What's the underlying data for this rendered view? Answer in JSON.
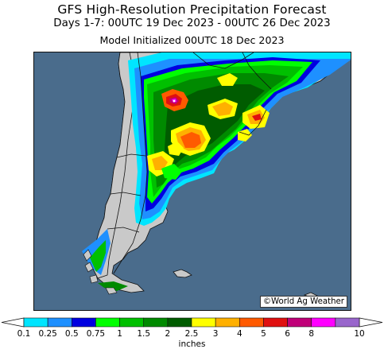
{
  "title": "GFS High-Resolution Precipitation Forecast",
  "subtitle": "Days 1-7: 00UTC 19 Dec 2023 - 00UTC 26 Dec 2023",
  "init_line": "Model Initialized 00UTC 18 Dec 2023",
  "credit": "©World Ag Weather",
  "colors": {
    "ocean": "#4a6c8c",
    "land_no_precip": "#c9c9c9",
    "borders": "#111111"
  },
  "legend": {
    "units": "inches",
    "ticks": [
      "0.1",
      "0.25",
      "0.5",
      "0.75",
      "1",
      "1.5",
      "2",
      "2.5",
      "3",
      "4",
      "5",
      "6",
      "8",
      "10"
    ],
    "bins": [
      {
        "from": "0.1",
        "to": "0.25",
        "color": "#00e5ff"
      },
      {
        "from": "0.25",
        "to": "0.5",
        "color": "#1e90ff"
      },
      {
        "from": "0.5",
        "to": "0.75",
        "color": "#0000e0"
      },
      {
        "from": "0.75",
        "to": "1",
        "color": "#00ff00"
      },
      {
        "from": "1",
        "to": "1.5",
        "color": "#00c000"
      },
      {
        "from": "1.5",
        "to": "2",
        "color": "#008a00"
      },
      {
        "from": "2",
        "to": "2.5",
        "color": "#005c00"
      },
      {
        "from": "2.5",
        "to": "3",
        "color": "#ffff00"
      },
      {
        "from": "3",
        "to": "4",
        "color": "#ffb000"
      },
      {
        "from": "4",
        "to": "5",
        "color": "#ff5a00"
      },
      {
        "from": "5",
        "to": "6",
        "color": "#e01010"
      },
      {
        "from": "6",
        "to": "8",
        "color": "#c00078"
      },
      {
        "from": "8",
        "to": "10",
        "color": "#ff00ff"
      },
      {
        "from": "10",
        "to": "10+",
        "color": "#9966cc"
      }
    ]
  }
}
